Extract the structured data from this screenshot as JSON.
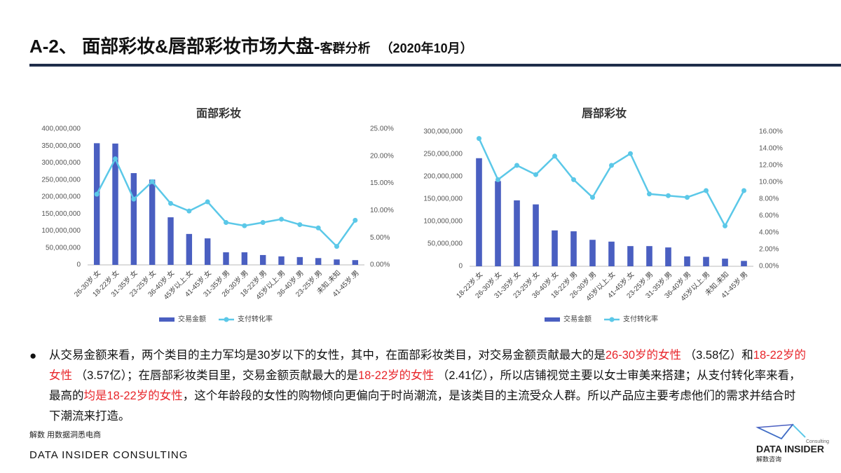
{
  "header": {
    "title_main": "A-2、 面部彩妆&唇部彩妆市场大盘-",
    "title_sub": "客群分析",
    "date": "（2020年10月）"
  },
  "chart_data": [
    {
      "type": "bar",
      "title": "面部彩妆",
      "categories": [
        "26-30岁.女",
        "18-22岁.女",
        "31-35岁.女",
        "23-25岁.女",
        "36-40岁.女",
        "45岁以上.女",
        "41-45岁.女",
        "31-35岁.男",
        "26-30岁.男",
        "18-22岁.男",
        "45岁以上.男",
        "36-40岁.男",
        "23-25岁.男",
        "未知.未知",
        "41-45岁.男"
      ],
      "series": [
        {
          "name": "交易金额",
          "color": "#4a5fc1",
          "type": "bar",
          "values": [
            358000000,
            357000000,
            270000000,
            251000000,
            140000000,
            91000000,
            78000000,
            37000000,
            37000000,
            29000000,
            25000000,
            23000000,
            20000000,
            16000000,
            14000000
          ]
        },
        {
          "name": "支付转化率",
          "color": "#5bc8e8",
          "type": "line",
          "axis": "y2",
          "values": [
            13.0,
            19.5,
            12.1,
            15.3,
            11.3,
            9.9,
            11.6,
            7.8,
            7.2,
            7.8,
            8.4,
            7.4,
            6.8,
            3.4,
            8.2
          ]
        }
      ],
      "ylim": [
        0,
        400000000
      ],
      "yticks": [
        0,
        {
          "value": 50000000,
          "label": "50,000,000"
        },
        {
          "value": 100000000,
          "label": "100,000,000"
        },
        {
          "value": 150000000,
          "label": "150,000,000"
        },
        {
          "value": 200000000,
          "label": "200,000,000"
        },
        {
          "value": 250000000,
          "label": "250,000,000"
        },
        {
          "value": 300000000,
          "label": "300,000,000"
        },
        {
          "value": 350000000,
          "label": "350,000,000"
        },
        {
          "value": 400000000,
          "label": "400,000,000"
        }
      ],
      "y2lim": [
        0,
        25
      ],
      "y2ticks": [
        {
          "value": 0,
          "label": "0.00%"
        },
        {
          "value": 5,
          "label": "5.00%"
        },
        {
          "value": 10,
          "label": "10.00%"
        },
        {
          "value": 15,
          "label": "15.00%"
        },
        {
          "value": 20,
          "label": "20.00%"
        },
        {
          "value": 25,
          "label": "25.00%"
        }
      ],
      "legend": "bottom"
    },
    {
      "type": "bar",
      "title": "唇部彩妆",
      "categories": [
        "18-22岁.女",
        "26-30岁.女",
        "31-35岁.女",
        "23-25岁.女",
        "36-40岁.女",
        "18-22岁.男",
        "26-30岁.男",
        "45岁以上.女",
        "41-45岁.女",
        "23-25岁.男",
        "31-35岁.男",
        "36-40岁.男",
        "45岁以上.男",
        "未知.未知",
        "41-45岁.男"
      ],
      "series": [
        {
          "name": "交易金额",
          "color": "#4a5fc1",
          "type": "bar",
          "values": [
            241000000,
            190000000,
            147000000,
            138000000,
            80000000,
            78000000,
            59000000,
            55000000,
            45000000,
            45000000,
            42000000,
            22000000,
            21000000,
            17000000,
            12000000
          ]
        },
        {
          "name": "支付转化率",
          "color": "#5bc8e8",
          "type": "line",
          "axis": "y2",
          "values": [
            15.2,
            10.3,
            12.0,
            10.9,
            13.1,
            10.3,
            8.2,
            12.0,
            13.4,
            8.6,
            8.4,
            8.2,
            9.0,
            4.8,
            9.0
          ]
        }
      ],
      "ylim": [
        0,
        300000000
      ],
      "yticks": [
        0,
        {
          "value": 50000000,
          "label": "50,000,000"
        },
        {
          "value": 100000000,
          "label": "100,000,000"
        },
        {
          "value": 150000000,
          "label": "150,000,000"
        },
        {
          "value": 200000000,
          "label": "200,000,000"
        },
        {
          "value": 250000000,
          "label": "250,000,000"
        },
        {
          "value": 300000000,
          "label": "300,000,000"
        }
      ],
      "y2lim": [
        0,
        16
      ],
      "y2ticks": [
        {
          "value": 0,
          "label": "0.00%"
        },
        {
          "value": 2,
          "label": "2.00%"
        },
        {
          "value": 4,
          "label": "4.00%"
        },
        {
          "value": 6,
          "label": "6.00%"
        },
        {
          "value": 8,
          "label": "8.00%"
        },
        {
          "value": 10,
          "label": "10.00%"
        },
        {
          "value": 12,
          "label": "12.00%"
        },
        {
          "value": 14,
          "label": "14.00%"
        },
        {
          "value": 16,
          "label": "16.00%"
        }
      ],
      "legend": "bottom"
    }
  ],
  "bullet": [
    {
      "text": "从交易金额来看，两个类目的主力军均是30岁以下的女性，其中，在面部彩妆类目，对交易金额贡献最大的是",
      "red": false
    },
    {
      "text": "26-30岁的女性",
      "red": true
    },
    {
      "text": " （3.58亿）和",
      "red": false
    },
    {
      "text": "18-22岁的女性",
      "red": true
    },
    {
      "text": " （3.57亿）；在唇部彩妆类目里，交易金额贡献最大的是",
      "red": false
    },
    {
      "text": "18-22岁的女性",
      "red": true
    },
    {
      "text": " （2.41亿），所以店铺视觉主要以女士审美来搭建；从支付转化率来看，最高的",
      "red": false
    },
    {
      "text": "均是18-22岁的女性",
      "red": true
    },
    {
      "text": "，这个年龄段的女性的购物倾向更偏向于时尚潮流，是该类目的主流受众人群。所以产品应主要考虑他们的需求并结合时下潮流来打造。",
      "red": false
    }
  ],
  "footer": {
    "source": "解数 用数据洞悉电商",
    "company": "DATA INSIDER CONSULTING",
    "logo_main": "DATA INSIDER",
    "logo_sub": "解数咨询",
    "logo_tag": "Consulting"
  }
}
